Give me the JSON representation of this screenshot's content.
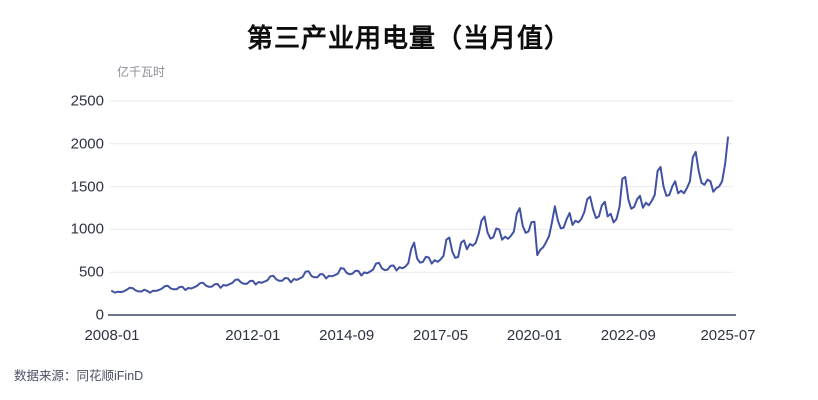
{
  "header": {
    "title": "第三产业用电量（当月值）"
  },
  "footer": {
    "source": "数据来源：同花顺iFinD"
  },
  "chart_data": {
    "type": "line",
    "title": "第三产业用电量（当月值）",
    "ylabel": "亿千瓦时",
    "xlabel": "",
    "x_frequency": "monthly",
    "x_start": "2008-01",
    "x_end": "2025-07",
    "xtick_labels": [
      "2008-01",
      "2012-01",
      "2014-09",
      "2017-05",
      "2020-01",
      "2022-09",
      "2025-07"
    ],
    "xtick_month_indices": [
      0,
      48,
      80,
      112,
      144,
      176,
      210
    ],
    "ytick_labels": [
      "0",
      "500",
      "1000",
      "1500",
      "2000",
      "2500"
    ],
    "yticks": [
      0,
      500,
      1000,
      1500,
      2000,
      2500
    ],
    "ylim": [
      0,
      2500
    ],
    "grid": "horizontal",
    "legend_position": "none",
    "colors": {
      "line": "#4252A2",
      "grid": "#EAEAEF",
      "axis": "#3A4663",
      "tick_text": "#2E3342",
      "title_text": "#0D0D0D",
      "unit_text": "#8A8E96",
      "source_text": "#4A4F63"
    },
    "values": [
      280,
      262,
      272,
      268,
      276,
      294,
      318,
      314,
      288,
      276,
      274,
      295,
      282,
      260,
      284,
      281,
      292,
      308,
      336,
      341,
      311,
      300,
      300,
      326,
      330,
      292,
      316,
      310,
      324,
      340,
      372,
      377,
      344,
      330,
      330,
      360,
      362,
      318,
      350,
      344,
      360,
      375,
      410,
      415,
      380,
      365,
      365,
      396,
      400,
      356,
      386,
      376,
      390,
      406,
      452,
      458,
      416,
      400,
      400,
      432,
      428,
      382,
      420,
      410,
      426,
      446,
      506,
      512,
      456,
      440,
      440,
      478,
      474,
      428,
      458,
      452,
      466,
      482,
      548,
      542,
      492,
      476,
      482,
      518,
      514,
      462,
      498,
      488,
      508,
      530,
      600,
      610,
      545,
      525,
      532,
      575,
      578,
      520,
      558,
      545,
      565,
      605,
      770,
      845,
      660,
      612,
      620,
      680,
      672,
      600,
      640,
      622,
      648,
      690,
      880,
      905,
      740,
      668,
      678,
      845,
      872,
      768,
      830,
      810,
      842,
      950,
      1105,
      1150,
      965,
      892,
      908,
      1010,
      1000,
      880,
      915,
      890,
      925,
      975,
      1185,
      1248,
      1042,
      960,
      975,
      1085,
      1090,
      700,
      762,
      792,
      852,
      922,
      1085,
      1270,
      1102,
      1012,
      1022,
      1122,
      1192,
      1052,
      1102,
      1082,
      1122,
      1202,
      1352,
      1382,
      1232,
      1132,
      1152,
      1282,
      1322,
      1152,
      1182,
      1082,
      1122,
      1262,
      1592,
      1612,
      1352,
      1242,
      1262,
      1352,
      1392,
      1252,
      1312,
      1282,
      1332,
      1402,
      1682,
      1730,
      1502,
      1392,
      1402,
      1502,
      1562,
      1422,
      1452,
      1422,
      1482,
      1562,
      1842,
      1905,
      1682,
      1542,
      1522,
      1582,
      1562,
      1440,
      1482,
      1502,
      1562,
      1762,
      2075
    ]
  },
  "layout_note": ""
}
